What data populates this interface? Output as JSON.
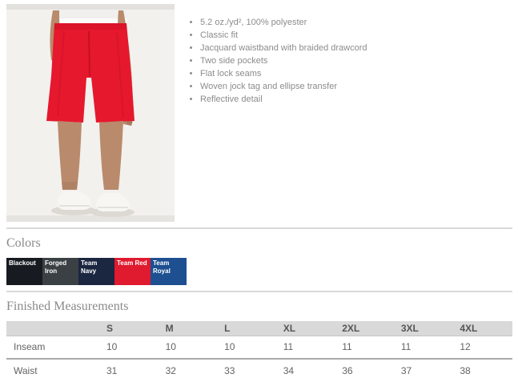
{
  "product": {
    "image_alt": "Model wearing red athletic shorts with white t-shirt and white sneakers",
    "features": [
      "5.2 oz./yd², 100% polyester",
      "Classic fit",
      "Jacquard waistband with braided drawcord",
      "Two side pockets",
      "Flat lock seams",
      "Woven jock tag and ellipse transfer",
      "Reflective detail"
    ]
  },
  "colors_section": {
    "title": "Colors",
    "swatches": [
      {
        "name": "Blackout",
        "hex": "#171b21"
      },
      {
        "name": "Forged Iron",
        "hex": "#3b4044"
      },
      {
        "name": "Team Navy",
        "hex": "#1b2640"
      },
      {
        "name": "Team Red",
        "hex": "#e01a2f"
      },
      {
        "name": "Team Royal",
        "hex": "#1d4f91"
      }
    ]
  },
  "measurements_section": {
    "title": "Finished Measurements",
    "columns": [
      "S",
      "M",
      "L",
      "XL",
      "2XL",
      "3XL",
      "4XL"
    ],
    "rows": [
      {
        "label": "Inseam",
        "values": [
          "10",
          "10",
          "10",
          "11",
          "11",
          "11",
          "12"
        ]
      },
      {
        "label": "Waist",
        "values": [
          "31",
          "32",
          "33",
          "34",
          "36",
          "37",
          "38"
        ]
      }
    ]
  },
  "photo_colors": {
    "background": "#f2f1ee",
    "edge_strip": "#e3e1dd",
    "shorts_red": "#e6182d",
    "shorts_red_dark": "#d11226",
    "skin": "#b98a6c",
    "skin_dark": "#a87a5e",
    "shirt_white": "#fbfbfa",
    "shoe_white": "#f7f6f2",
    "shadow": "#dcd9d3"
  }
}
